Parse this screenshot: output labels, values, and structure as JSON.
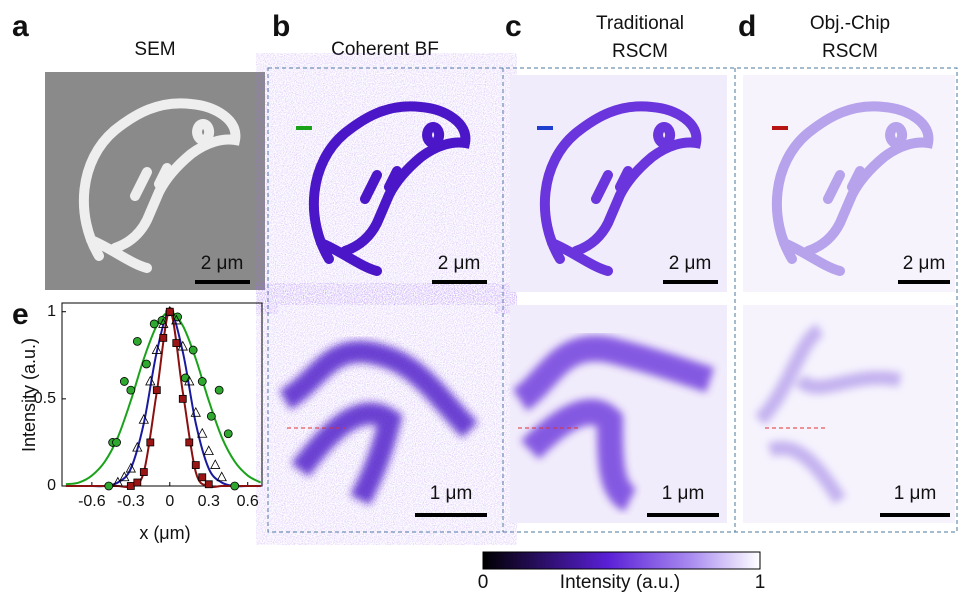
{
  "panels": [
    {
      "label": "a",
      "title": [
        "SEM"
      ],
      "scale_bars": [
        "2 μm"
      ]
    },
    {
      "label": "b",
      "title": [
        "Coherent BF"
      ],
      "scale_bars": [
        "2 μm",
        "1 μm"
      ]
    },
    {
      "label": "c",
      "title": [
        "Traditional",
        "RSCM"
      ],
      "scale_bars": [
        "2 μm",
        "1 μm"
      ]
    },
    {
      "label": "d",
      "title": [
        "Obj.-Chip",
        "RSCM"
      ],
      "scale_bars": [
        "2 μm",
        "1 μm"
      ]
    }
  ],
  "chart_data": {
    "type": "scatter",
    "label": "e",
    "x_label": "x (μm)",
    "y_label": "Intensity (a.u.)",
    "xlim": [
      -0.83,
      0.71
    ],
    "ylim": [
      0,
      1.05
    ],
    "xticks": [
      -0.6,
      -0.3,
      0,
      0.3,
      0.6
    ],
    "yticks": [
      0,
      0.5,
      1
    ],
    "series": [
      {
        "marker": "line",
        "color": "#1aa31a",
        "x": [
          -0.8,
          -0.7,
          -0.6,
          -0.5,
          -0.4,
          -0.3,
          -0.2,
          -0.1,
          0,
          0.1,
          0.2,
          0.3,
          0.4,
          0.5,
          0.6,
          0.7
        ],
        "values": [
          0.01,
          0.02,
          0.06,
          0.14,
          0.28,
          0.49,
          0.73,
          0.92,
          1,
          0.92,
          0.73,
          0.49,
          0.28,
          0.14,
          0.06,
          0.02
        ]
      },
      {
        "marker": "line",
        "color": "#1a1a9e",
        "x": [
          -0.8,
          -0.7,
          -0.6,
          -0.5,
          -0.4,
          -0.3,
          -0.2,
          -0.1,
          0,
          0.1,
          0.2,
          0.3,
          0.4,
          0.5,
          0.6,
          0.7
        ],
        "values": [
          0,
          0,
          0,
          0,
          0.02,
          0.1,
          0.36,
          0.77,
          1,
          0.77,
          0.36,
          0.1,
          0.02,
          0,
          0,
          0
        ]
      },
      {
        "marker": "line",
        "color": "#8b1010",
        "x": [
          -0.8,
          -0.7,
          -0.6,
          -0.5,
          -0.4,
          -0.3,
          -0.2,
          -0.1,
          0,
          0.1,
          0.2,
          0.3,
          0.4,
          0.5,
          0.6,
          0.7
        ],
        "values": [
          0,
          0,
          0,
          0,
          0,
          0,
          0.08,
          0.54,
          1,
          0.54,
          0.08,
          0,
          0,
          0,
          0,
          0
        ]
      },
      {
        "marker": "circle",
        "color": "#2ea82e",
        "x": [
          -0.47,
          -0.44,
          -0.41,
          -0.35,
          -0.3,
          -0.25,
          -0.18,
          -0.12,
          -0.06,
          0,
          0.06,
          0.12,
          0.18,
          0.25,
          0.32,
          0.38,
          0.45,
          0.5
        ],
        "values": [
          0,
          0.25,
          0.25,
          0.6,
          0.55,
          0.83,
          0.7,
          0.93,
          0.95,
          1,
          0.97,
          0.62,
          0.78,
          0.6,
          0.4,
          0.55,
          0.3,
          0
        ]
      },
      {
        "marker": "triangle",
        "color": "#000000",
        "x": [
          -0.4,
          -0.35,
          -0.3,
          -0.25,
          -0.2,
          -0.15,
          -0.1,
          -0.05,
          0,
          0.05,
          0.1,
          0.15,
          0.2,
          0.25,
          0.3,
          0.35,
          0.4
        ],
        "values": [
          0.02,
          0.05,
          0.1,
          0.22,
          0.38,
          0.6,
          0.78,
          0.93,
          1,
          0.95,
          0.8,
          0.6,
          0.42,
          0.3,
          0.2,
          0.12,
          0.05
        ]
      },
      {
        "marker": "square",
        "color": "#9b1515",
        "x": [
          -0.3,
          -0.25,
          -0.2,
          -0.15,
          -0.1,
          -0.05,
          0,
          0.05,
          0.1,
          0.15,
          0.2,
          0.25,
          0.3
        ],
        "values": [
          0,
          0.02,
          0.08,
          0.25,
          0.55,
          0.85,
          1,
          0.82,
          0.5,
          0.25,
          0.12,
          0.05,
          0.01
        ]
      }
    ]
  },
  "colorbar": {
    "label": "Intensity (a.u.)",
    "min": 0,
    "max": 1
  }
}
